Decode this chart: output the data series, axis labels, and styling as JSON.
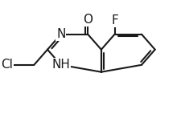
{
  "bg": "#ffffff",
  "bc": "#1a1a1a",
  "lw": 1.5,
  "dbl_off": 0.016,
  "trim": 0.14,
  "figsize": [
    2.25,
    1.47
  ],
  "dpi": 100,
  "fs": 11.0,
  "xlim": [
    0.0,
    1.0
  ],
  "ylim": [
    0.0,
    1.0
  ],
  "bl": 0.15
}
